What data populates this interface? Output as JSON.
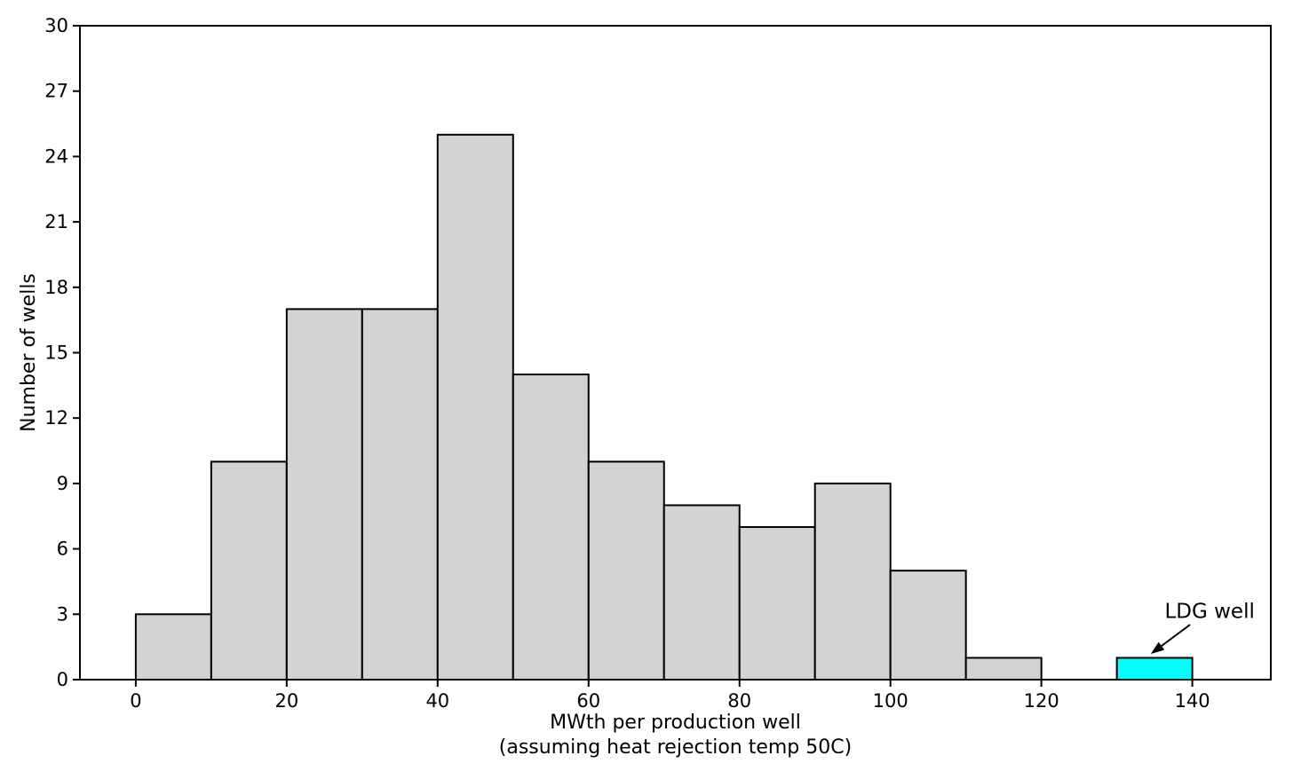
{
  "chart_data": {
    "type": "bar",
    "subtype": "histogram",
    "title": "",
    "xlabel": "MWth per production well",
    "xlabel_sub": "(assuming heat rejection temp 50C)",
    "ylabel": "Number of wells",
    "xlim": [
      -7.4,
      150.4
    ],
    "ylim": [
      0,
      30
    ],
    "xticks": [
      0,
      20,
      40,
      60,
      80,
      100,
      120,
      140
    ],
    "yticks": [
      0,
      3,
      6,
      9,
      12,
      15,
      18,
      21,
      24,
      27,
      30
    ],
    "grid": false,
    "legend": false,
    "bar_color": "#d3d3d3",
    "highlight_color": "#00ffff",
    "edge_color": "#000000",
    "bins": [
      {
        "start": 0,
        "end": 10,
        "count": 3,
        "highlight": false
      },
      {
        "start": 10,
        "end": 20,
        "count": 10,
        "highlight": false
      },
      {
        "start": 20,
        "end": 30,
        "count": 17,
        "highlight": false
      },
      {
        "start": 30,
        "end": 40,
        "count": 17,
        "highlight": false
      },
      {
        "start": 40,
        "end": 50,
        "count": 25,
        "highlight": false
      },
      {
        "start": 50,
        "end": 60,
        "count": 14,
        "highlight": false
      },
      {
        "start": 60,
        "end": 70,
        "count": 10,
        "highlight": false
      },
      {
        "start": 70,
        "end": 80,
        "count": 8,
        "highlight": false
      },
      {
        "start": 80,
        "end": 90,
        "count": 7,
        "highlight": false
      },
      {
        "start": 90,
        "end": 100,
        "count": 9,
        "highlight": false
      },
      {
        "start": 100,
        "end": 110,
        "count": 5,
        "highlight": false
      },
      {
        "start": 110,
        "end": 120,
        "count": 1,
        "highlight": false
      },
      {
        "start": 120,
        "end": 130,
        "count": 0,
        "highlight": false
      },
      {
        "start": 130,
        "end": 140,
        "count": 1,
        "highlight": true
      }
    ],
    "annotation": {
      "text": "LDG well",
      "label_x": 142.3,
      "label_y": 2.82,
      "arrow_from_x": 139.7,
      "arrow_from_y": 2.52,
      "arrow_to_x": 134.5,
      "arrow_to_y": 1.18
    }
  }
}
